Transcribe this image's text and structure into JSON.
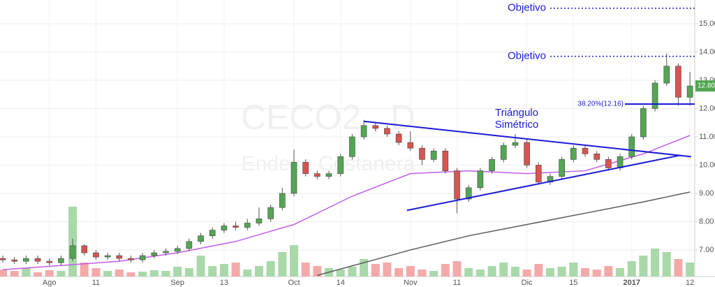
{
  "chart_data": {
    "type": "candlestick",
    "title": "CECO2 , D",
    "subtitle": "Endesa Costanera",
    "categories": [
      null,
      null,
      null,
      null,
      "Ago",
      null,
      null,
      null,
      "11",
      null,
      null,
      null,
      null,
      null,
      null,
      "Sep",
      null,
      null,
      null,
      "13",
      null,
      null,
      null,
      null,
      null,
      "Oct",
      null,
      null,
      null,
      "14",
      null,
      null,
      null,
      null,
      null,
      "Nov",
      null,
      null,
      null,
      "11",
      null,
      null,
      null,
      null,
      null,
      "Dic",
      null,
      null,
      null,
      "15",
      null,
      null,
      null,
      null,
      "2017",
      null,
      null,
      null,
      null,
      "12"
    ],
    "open": [
      6.7,
      6.65,
      6.6,
      6.7,
      6.6,
      6.55,
      6.7,
      7.15,
      6.9,
      6.75,
      6.8,
      6.7,
      6.65,
      6.8,
      6.9,
      6.95,
      7.05,
      7.3,
      7.5,
      7.7,
      7.85,
      7.8,
      7.95,
      8.1,
      8.5,
      9.0,
      10.1,
      9.7,
      9.6,
      9.7,
      10.3,
      11.0,
      11.4,
      11.3,
      11.1,
      10.8,
      10.6,
      10.2,
      10.5,
      9.8,
      8.8,
      9.2,
      9.8,
      10.2,
      10.7,
      10.8,
      10.0,
      9.4,
      9.6,
      10.2,
      10.6,
      10.4,
      10.2,
      9.9,
      10.3,
      11.0,
      12.0,
      12.9,
      13.5,
      12.4
    ],
    "high": [
      6.8,
      6.75,
      6.8,
      6.8,
      6.7,
      6.8,
      7.4,
      7.2,
      7.0,
      6.9,
      6.9,
      6.8,
      6.9,
      7.0,
      7.05,
      7.15,
      7.4,
      7.6,
      7.8,
      7.95,
      8.0,
      8.1,
      8.5,
      8.6,
      9.2,
      10.55,
      10.2,
      9.8,
      9.8,
      10.4,
      11.1,
      11.6,
      11.5,
      11.4,
      11.2,
      11.2,
      10.7,
      10.6,
      10.6,
      9.9,
      9.3,
      9.9,
      10.3,
      10.8,
      11.1,
      10.9,
      10.1,
      9.7,
      10.3,
      10.7,
      10.7,
      10.5,
      10.3,
      10.4,
      11.1,
      12.1,
      13.0,
      13.95,
      13.6,
      13.3
    ],
    "low": [
      6.55,
      6.5,
      6.5,
      6.5,
      6.45,
      6.45,
      6.6,
      6.8,
      6.65,
      6.65,
      6.6,
      6.55,
      6.55,
      6.7,
      6.8,
      6.85,
      6.95,
      7.2,
      7.4,
      7.6,
      7.7,
      7.7,
      7.85,
      8.0,
      8.4,
      8.9,
      9.6,
      9.5,
      9.5,
      9.6,
      10.2,
      10.9,
      11.2,
      11.0,
      10.7,
      10.5,
      10.0,
      10.1,
      9.7,
      8.3,
      8.7,
      9.1,
      9.7,
      10.1,
      10.6,
      9.9,
      9.3,
      9.3,
      9.5,
      10.1,
      10.3,
      10.1,
      9.8,
      9.8,
      10.2,
      10.9,
      11.9,
      12.8,
      12.1,
      12.1
    ],
    "close": [
      6.65,
      6.6,
      6.7,
      6.6,
      6.55,
      6.7,
      7.15,
      6.9,
      6.75,
      6.8,
      6.7,
      6.65,
      6.8,
      6.9,
      6.95,
      7.05,
      7.3,
      7.5,
      7.7,
      7.85,
      7.8,
      7.95,
      8.1,
      8.5,
      9.0,
      10.1,
      9.7,
      9.6,
      9.7,
      10.3,
      11.0,
      11.4,
      11.3,
      11.1,
      10.8,
      10.6,
      10.2,
      10.5,
      9.8,
      8.8,
      9.2,
      9.8,
      10.2,
      10.7,
      10.8,
      10.0,
      9.4,
      9.6,
      10.2,
      10.6,
      10.4,
      10.2,
      9.9,
      10.3,
      11.0,
      12.0,
      12.9,
      13.5,
      12.4,
      12.8
    ],
    "volume": [
      10,
      8,
      12,
      6,
      9,
      8,
      100,
      20,
      12,
      8,
      10,
      6,
      7,
      9,
      8,
      14,
      12,
      30,
      15,
      18,
      20,
      10,
      15,
      22,
      35,
      45,
      20,
      15,
      12,
      10,
      14,
      25,
      18,
      20,
      12,
      15,
      10,
      8,
      18,
      22,
      12,
      10,
      15,
      20,
      14,
      10,
      18,
      12,
      14,
      20,
      12,
      10,
      15,
      12,
      22,
      30,
      40,
      35,
      25,
      20
    ],
    "volume_ylim": [
      0,
      100
    ],
    "up_color": "#53a653",
    "down_color": "#d9534f",
    "volume_up_color": "#a9d8a9",
    "volume_down_color": "#f4a9a9",
    "ylim": [
      6.06,
      15.84
    ],
    "yticks": [
      {
        "value": 7,
        "label": "7.00"
      },
      {
        "value": 8,
        "label": "8.00"
      },
      {
        "value": 9,
        "label": "9.00"
      },
      {
        "value": 10,
        "label": "10.00"
      },
      {
        "value": 11,
        "label": "11.00"
      },
      {
        "value": 12,
        "label": "12.00"
      },
      {
        "value": 13,
        "label": "13.00"
      },
      {
        "value": 14,
        "label": "14.00"
      },
      {
        "value": 15,
        "label": "15.00"
      }
    ],
    "grid": true,
    "moving_averages": [
      {
        "color": "#c35ce8",
        "x": [
          0,
          10,
          15,
          20,
          25,
          30,
          35,
          40,
          45,
          50,
          55,
          59
        ],
        "values": [
          6.3,
          6.6,
          6.9,
          7.3,
          7.9,
          8.9,
          9.7,
          9.8,
          9.7,
          9.8,
          10.4,
          11.05
        ]
      },
      {
        "color": "#5a5a5a",
        "x": [
          27,
          35,
          40,
          45,
          50,
          55,
          59
        ],
        "values": [
          6.1,
          7.0,
          7.5,
          7.9,
          8.3,
          8.7,
          9.05
        ]
      }
    ],
    "trendlines": [
      {
        "color": "#1a1ad8",
        "x": [
          31,
          59.1
        ],
        "values": [
          11.55,
          10.3
        ]
      },
      {
        "color": "#1a1ad8",
        "x": [
          34.7,
          58.2
        ],
        "values": [
          8.4,
          10.35
        ]
      }
    ],
    "pattern_label": [
      "Triángulo",
      "Simétrico"
    ],
    "fib_level": {
      "value": 12.16,
      "label": "38.20%(12.16)",
      "color": "#1a1ad8"
    },
    "targets": [
      {
        "value": 15.55,
        "label": "Objetivo"
      },
      {
        "value": 13.85,
        "label": "Objetivo"
      }
    ],
    "last_price_label": "12.80"
  }
}
